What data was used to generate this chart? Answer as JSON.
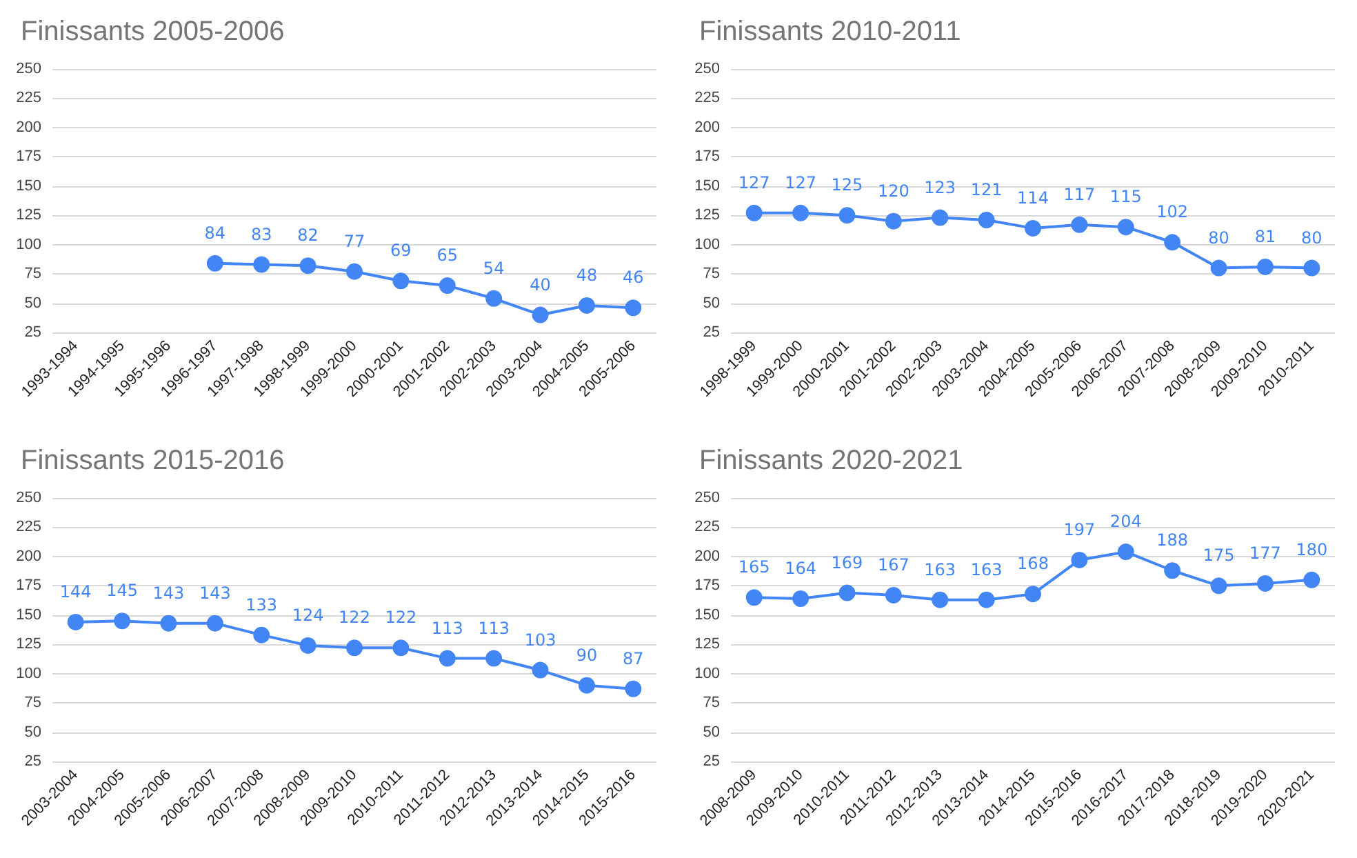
{
  "chart_data": [
    {
      "type": "line",
      "title": "Finissants 2005-2006",
      "categories": [
        "1993-1994",
        "1994-1995",
        "1995-1996",
        "1996-1997",
        "1997-1998",
        "1998-1999",
        "1999-2000",
        "2000-2001",
        "2001-2002",
        "2002-2003",
        "2003-2004",
        "2004-2005",
        "2005-2006"
      ],
      "series": [
        {
          "color": "#4285f4",
          "values": [
            null,
            null,
            null,
            84,
            83,
            82,
            77,
            69,
            65,
            54,
            40,
            48,
            46
          ]
        }
      ],
      "ylim": [
        25,
        250
      ],
      "yticks": [
        25,
        50,
        75,
        100,
        125,
        150,
        175,
        200,
        225,
        250
      ],
      "grid": "y",
      "data_labels": true,
      "marker": "circle",
      "line_style": "solid"
    },
    {
      "type": "line",
      "title": "Finissants 2010-2011",
      "categories": [
        "1998-1999",
        "1999-2000",
        "2000-2001",
        "2001-2002",
        "2002-2003",
        "2003-2004",
        "2004-2005",
        "2005-2006",
        "2006-2007",
        "2007-2008",
        "2008-2009",
        "2009-2010",
        "2010-2011"
      ],
      "series": [
        {
          "color": "#4285f4",
          "values": [
            127,
            127,
            125,
            120,
            123,
            121,
            114,
            117,
            115,
            102,
            80,
            81,
            80
          ]
        }
      ],
      "ylim": [
        25,
        250
      ],
      "yticks": [
        25,
        50,
        75,
        100,
        125,
        150,
        175,
        200,
        225,
        250
      ],
      "grid": "y",
      "data_labels": true,
      "marker": "circle",
      "line_style": "solid"
    },
    {
      "type": "line",
      "title": "Finissants 2015-2016",
      "categories": [
        "2003-2004",
        "2004-2005",
        "2005-2006",
        "2006-2007",
        "2007-2008",
        "2008-2009",
        "2009-2010",
        "2010-2011",
        "2011-2012",
        "2012-2013",
        "2013-2014",
        "2014-2015",
        "2015-2016"
      ],
      "series": [
        {
          "color": "#4285f4",
          "values": [
            144,
            145,
            143,
            143,
            133,
            124,
            122,
            122,
            113,
            113,
            103,
            90,
            87
          ]
        }
      ],
      "ylim": [
        25,
        250
      ],
      "yticks": [
        25,
        50,
        75,
        100,
        125,
        150,
        175,
        200,
        225,
        250
      ],
      "grid": "y",
      "data_labels": true,
      "marker": "circle",
      "line_style": "solid"
    },
    {
      "type": "line",
      "title": "Finissants 2020-2021",
      "categories": [
        "2008-2009",
        "2009-2010",
        "2010-2011",
        "2011-2012",
        "2012-2013",
        "2013-2014",
        "2014-2015",
        "2015-2016",
        "2016-2017",
        "2017-2018",
        "2018-2019",
        "2019-2020",
        "2020-2021"
      ],
      "series": [
        {
          "color": "#4285f4",
          "values": [
            165,
            164,
            169,
            167,
            163,
            163,
            168,
            197,
            204,
            188,
            175,
            177,
            180
          ]
        }
      ],
      "ylim": [
        25,
        250
      ],
      "yticks": [
        25,
        50,
        75,
        100,
        125,
        150,
        175,
        200,
        225,
        250
      ],
      "grid": "y",
      "data_labels": true,
      "marker": "circle",
      "line_style": "solid"
    }
  ]
}
